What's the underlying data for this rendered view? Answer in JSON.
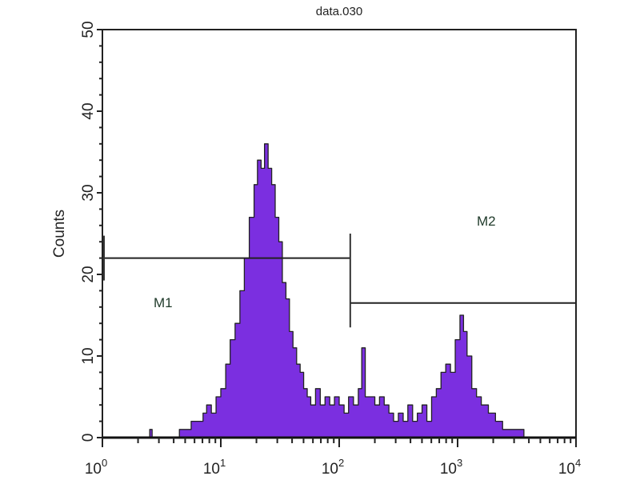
{
  "chart_data": {
    "type": "area",
    "title": "data.030",
    "xlabel": "",
    "ylabel": "Counts",
    "xscale": "log",
    "xlim": [
      1,
      10000
    ],
    "ylim": [
      0,
      50
    ],
    "grid": false,
    "x_tick_labels": [
      {
        "base": "10",
        "exp": "0"
      },
      {
        "base": "10",
        "exp": "1"
      },
      {
        "base": "10",
        "exp": "2"
      },
      {
        "base": "10",
        "exp": "3"
      },
      {
        "base": "10",
        "exp": "4"
      }
    ],
    "y_ticks": [
      0,
      10,
      20,
      30,
      40,
      50
    ],
    "y_tick_labels": [
      "0",
      "10",
      "20",
      "30",
      "40",
      "50"
    ],
    "fill_color": "#7b2fe0",
    "outline_color": "#222222",
    "series": [
      {
        "x": [
          2.4,
          2.51,
          2.63,
          4.17,
          4.47,
          5.01,
          5.62,
          6.31,
          7.08,
          7.59,
          8.32,
          9.12,
          10,
          11.0,
          12.0,
          13.2,
          14.5,
          15.8,
          17.4,
          19.1,
          20.4,
          21.9,
          23.4,
          25.1,
          26.9,
          28.8,
          30.9,
          33.1,
          35.5,
          38.0,
          40.7,
          43.7,
          46.8,
          50.1,
          53.7,
          57.5,
          63.1,
          69.2,
          75.9,
          83.2,
          91.2,
          100,
          110,
          120,
          132,
          145,
          155,
          166,
          182,
          200,
          219,
          240,
          263,
          288,
          316,
          347,
          380,
          417,
          457,
          501,
          550,
          603,
          661,
          724,
          794,
          871,
          955,
          1047,
          1122,
          1202,
          1318,
          1445,
          1585,
          1820,
          2089,
          2399,
          2754,
          3162,
          3631
        ],
        "counts": [
          0,
          1,
          0,
          0,
          1,
          1,
          2,
          2,
          3,
          4,
          3,
          5,
          6,
          9,
          12,
          14,
          18,
          22,
          27,
          31,
          34,
          33,
          36,
          33,
          31,
          27,
          24,
          19,
          17,
          13,
          11,
          9,
          8,
          6,
          5,
          4,
          6,
          4,
          5,
          4,
          5,
          4,
          3,
          5,
          4,
          6,
          11,
          5,
          5,
          4,
          5,
          4,
          3,
          2,
          3,
          2,
          4,
          2,
          3,
          4,
          2,
          5,
          6,
          8,
          9,
          8,
          12,
          15,
          13,
          10,
          6,
          5,
          4,
          3,
          2,
          1,
          1,
          1,
          0
        ]
      }
    ],
    "markers": [
      {
        "label": "M1",
        "range": [
          1,
          124
        ],
        "level": 22
      },
      {
        "label": "M2",
        "range": [
          124,
          10000
        ],
        "level": 16.5
      }
    ]
  }
}
